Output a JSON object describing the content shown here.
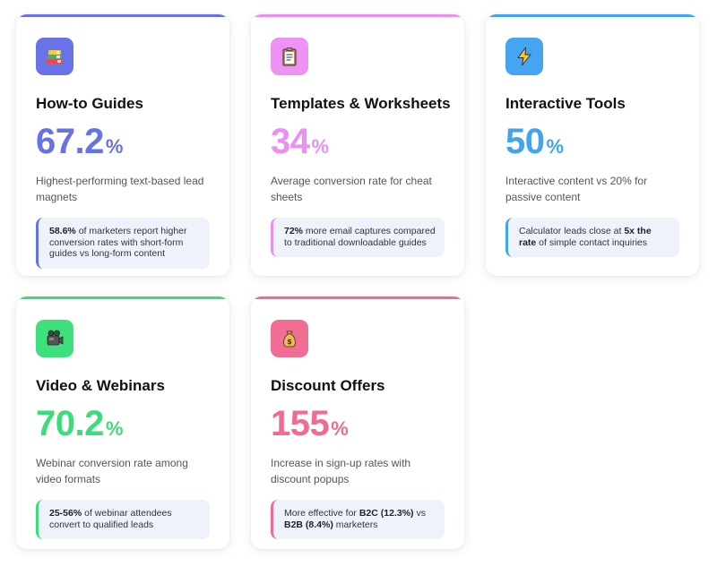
{
  "cards": [
    {
      "title": "How-to Guides",
      "stat_value": "67.2",
      "stat_unit": "%",
      "description": "Highest-performing text-based lead magnets",
      "note_strong": "58.6%",
      "note_text": " of marketers report higher conversion rates with short-form guides vs long-form content",
      "icon": "books-icon",
      "accent": "#6673e5",
      "icon_bg": "#6873e8"
    },
    {
      "title": "Templates & Worksheets",
      "stat_value": "34",
      "stat_unit": "%",
      "description": "Average conversion rate for cheat sheets",
      "note_strong": "72%",
      "note_text": " more email captures compared to traditional downloadable guides",
      "icon": "clipboard-icon",
      "accent": "#ec8ff2",
      "icon_bg": "#ee93f4"
    },
    {
      "title": "Interactive Tools",
      "stat_value": "50",
      "stat_unit": "%",
      "description": "Interactive content vs 20% for passive content",
      "note_pre": "Calculator leads close at ",
      "note_strong": "5x the rate",
      "note_post": " of simple contact inquiries",
      "icon": "lightning-icon",
      "accent": "#40a4ef",
      "icon_bg": "#45a5f2"
    },
    {
      "title": "Video & Webinars",
      "stat_value": "70.2",
      "stat_unit": "%",
      "description": "Webinar conversion rate among video formats",
      "note_strong": "25-56%",
      "note_text": " of webinar attendees convert to qualified leads",
      "icon": "video-camera-icon",
      "accent": "#3ddc7a",
      "icon_bg": "#3de07b"
    },
    {
      "title": "Discount Offers",
      "stat_value": "155",
      "stat_unit": "%",
      "description": "Increase in sign-up rates with discount popups",
      "note_pre": "More effective for ",
      "note_strong": "B2C (12.3%)",
      "note_mid": " vs ",
      "note_strong2": "B2B (8.4%)",
      "note_post": " marketers",
      "icon": "money-bag-icon",
      "accent": "#f06a92",
      "icon_bg": "#f26d93"
    }
  ]
}
